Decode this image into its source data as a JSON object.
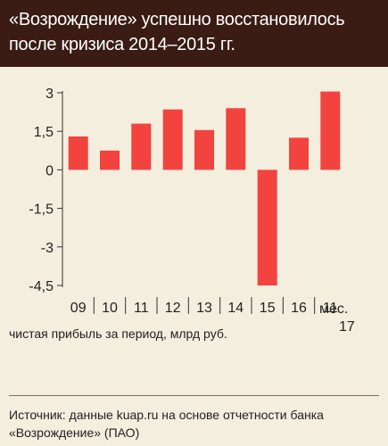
{
  "title": "«Возрождение» успешно восстановилось после кризиса 2014–2015 гг.",
  "source": "Источник: данные kuap.ru на основе отчетности банка «Возрождение» (ПАО)",
  "colors": {
    "header_bg": "#3a1c14",
    "background": "#f4eede",
    "bar": "#f2433f",
    "axis": "#333333"
  },
  "chart_data": {
    "type": "bar",
    "categories": [
      "09",
      "10",
      "11",
      "12",
      "13",
      "14",
      "15",
      "16",
      "11"
    ],
    "values": [
      1.3,
      0.75,
      1.8,
      2.35,
      1.55,
      2.4,
      -4.5,
      1.25,
      3.05
    ],
    "x_unit_label": "мес.",
    "x_unit_sublabel": "17",
    "ylabel": "чистая прибыль за период, млрд руб.",
    "xlabel": "",
    "yticks": [
      3,
      1.5,
      0,
      -1.5,
      -3,
      -4.5
    ],
    "ytick_labels": [
      "3",
      "1,5",
      "0",
      "-1,5",
      "-3",
      "-4,5"
    ],
    "ylim": [
      -4.5,
      3
    ],
    "grid": false,
    "legend": "none"
  }
}
